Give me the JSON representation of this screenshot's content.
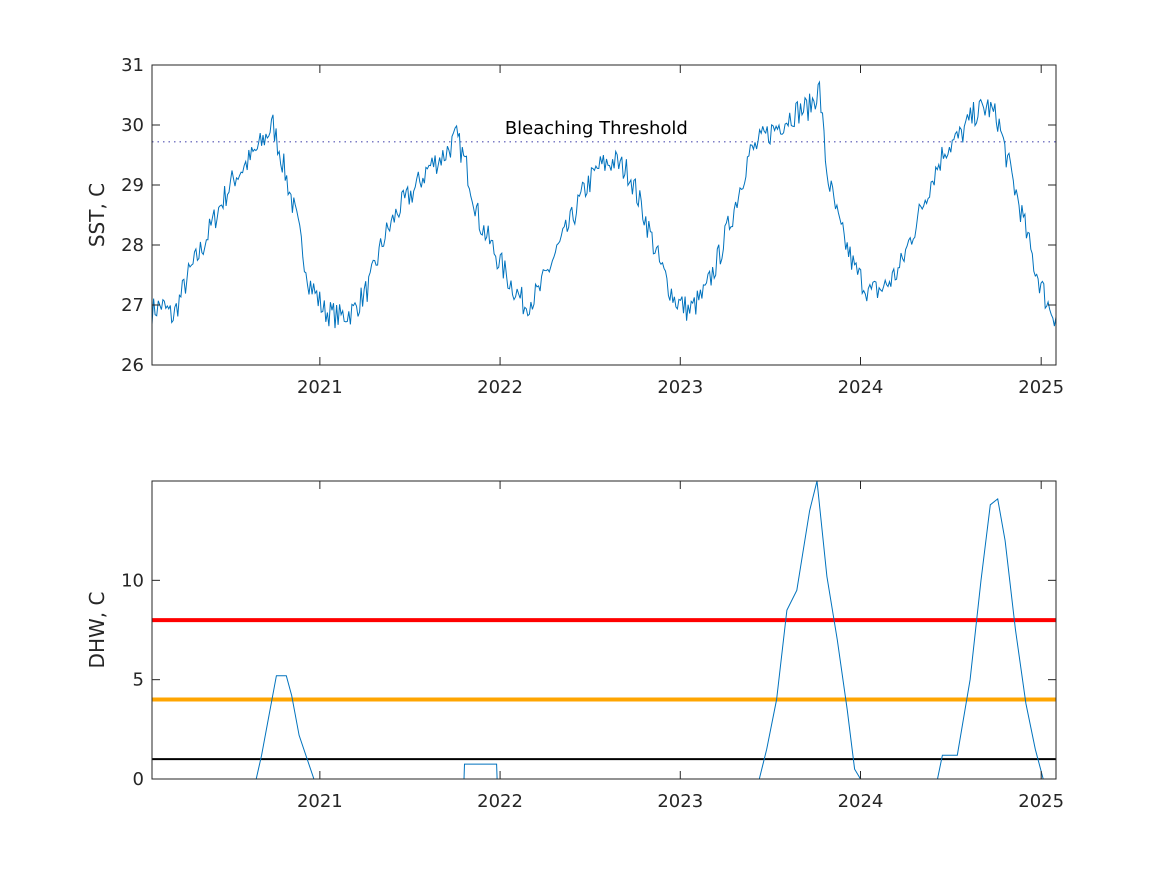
{
  "chart_data": [
    {
      "type": "line",
      "title": "",
      "xlabel": "",
      "ylabel": "SST, C",
      "xlim": [
        "2020-01-27",
        "2025-01-31"
      ],
      "ylim": [
        26,
        31
      ],
      "xticks": [
        {
          "date": "2021-01-01",
          "label": "2021"
        },
        {
          "date": "2022-01-01",
          "label": "2022"
        },
        {
          "date": "2023-01-01",
          "label": "2023"
        },
        {
          "date": "2024-01-01",
          "label": "2024"
        },
        {
          "date": "2025-01-01",
          "label": "2025"
        }
      ],
      "yticks": [
        26,
        27,
        28,
        29,
        30,
        31
      ],
      "grid": false,
      "series": [
        {
          "color": "#0072bd",
          "x": [
            "2020-01-27",
            "2020-02-15",
            "2020-03-10",
            "2020-04-10",
            "2020-05-10",
            "2020-06-10",
            "2020-07-10",
            "2020-08-10",
            "2020-09-05",
            "2020-09-28",
            "2020-10-20",
            "2020-11-15",
            "2020-12-10",
            "2021-01-10",
            "2021-02-10",
            "2021-03-10",
            "2021-04-10",
            "2021-05-10",
            "2021-06-10",
            "2021-07-10",
            "2021-08-10",
            "2021-09-10",
            "2021-10-05",
            "2021-10-25",
            "2021-11-20",
            "2021-12-20",
            "2022-01-20",
            "2022-02-20",
            "2022-03-20",
            "2022-04-20",
            "2022-05-20",
            "2022-06-20",
            "2022-07-20",
            "2022-08-20",
            "2022-09-20",
            "2022-10-20",
            "2022-11-20",
            "2022-12-20",
            "2023-01-20",
            "2023-02-20",
            "2023-03-20",
            "2023-04-20",
            "2023-05-20",
            "2023-06-20",
            "2023-07-20",
            "2023-08-20",
            "2023-09-20",
            "2023-10-10",
            "2023-10-25",
            "2023-11-20",
            "2023-12-20",
            "2024-01-20",
            "2024-02-20",
            "2024-03-20",
            "2024-04-20",
            "2024-05-20",
            "2024-06-20",
            "2024-07-20",
            "2024-08-20",
            "2024-09-15",
            "2024-10-05",
            "2024-10-25",
            "2024-11-20",
            "2024-12-20",
            "2025-01-15",
            "2025-01-31"
          ],
          "values": [
            26.9,
            27.0,
            26.8,
            27.5,
            28.0,
            28.6,
            29.1,
            29.4,
            29.7,
            30.0,
            29.3,
            28.4,
            27.4,
            26.9,
            26.8,
            26.9,
            27.3,
            28.1,
            28.6,
            28.9,
            29.3,
            29.5,
            29.8,
            29.3,
            28.4,
            27.9,
            27.4,
            27.0,
            27.2,
            27.8,
            28.3,
            28.9,
            29.3,
            29.4,
            29.2,
            28.5,
            27.7,
            27.1,
            26.9,
            27.2,
            27.8,
            28.6,
            29.5,
            29.8,
            30.0,
            30.2,
            30.3,
            30.6,
            29.2,
            28.3,
            27.6,
            27.2,
            27.3,
            27.6,
            28.3,
            29.0,
            29.6,
            29.8,
            30.2,
            30.3,
            30.1,
            29.4,
            28.6,
            27.6,
            27.0,
            26.8
          ]
        }
      ],
      "reference_lines": [
        {
          "y": 29.72,
          "style": "dotted",
          "color": "#7e7ec6"
        }
      ],
      "annotations": [
        {
          "text": "Bleaching Threshold",
          "x": "2022-07-15",
          "y": 29.85
        }
      ]
    },
    {
      "type": "line",
      "title": "",
      "xlabel": "",
      "ylabel": "DHW, C",
      "xlim": [
        "2020-01-27",
        "2025-01-31"
      ],
      "ylim": [
        0,
        15
      ],
      "xticks": [
        {
          "date": "2021-01-01",
          "label": "2021"
        },
        {
          "date": "2022-01-01",
          "label": "2022"
        },
        {
          "date": "2023-01-01",
          "label": "2023"
        },
        {
          "date": "2024-01-01",
          "label": "2024"
        },
        {
          "date": "2025-01-01",
          "label": "2025"
        }
      ],
      "yticks": [
        0,
        5,
        10
      ],
      "grid": false,
      "series": [
        {
          "color": "#0072bd",
          "x": [
            "2020-01-27",
            "2020-08-25",
            "2020-09-05",
            "2020-09-20",
            "2020-10-05",
            "2020-10-25",
            "2020-11-05",
            "2020-11-20",
            "2020-12-20",
            "2021-10-20",
            "2021-10-21",
            "2021-12-25",
            "2021-12-26",
            "2023-06-10",
            "2023-06-25",
            "2023-07-15",
            "2023-08-05",
            "2023-08-25",
            "2023-09-20",
            "2023-10-05",
            "2023-10-25",
            "2023-11-15",
            "2023-12-05",
            "2023-12-20",
            "2024-01-01",
            "2024-06-05",
            "2024-06-15",
            "2024-07-15",
            "2024-08-10",
            "2024-09-01",
            "2024-09-20",
            "2024-10-05",
            "2024-10-20",
            "2024-11-10",
            "2024-12-01",
            "2024-12-20",
            "2025-01-05",
            "2025-01-31"
          ],
          "values": [
            0,
            0,
            1.2,
            3.2,
            5.2,
            5.2,
            4.2,
            2.2,
            0,
            0,
            0.75,
            0.75,
            0,
            0,
            1.5,
            4.0,
            8.5,
            9.5,
            13.5,
            15.0,
            10.2,
            7.0,
            3.5,
            0.5,
            0,
            0,
            1.2,
            1.2,
            5.0,
            10.0,
            13.8,
            14.1,
            12.0,
            7.5,
            3.8,
            1.5,
            0,
            0
          ]
        }
      ],
      "reference_lines": [
        {
          "y": 8,
          "color": "#ff0000",
          "style": "solid"
        },
        {
          "y": 4,
          "color": "#ffa500",
          "style": "solid"
        },
        {
          "y": 1,
          "color": "#000000",
          "style": "solid"
        }
      ]
    }
  ]
}
